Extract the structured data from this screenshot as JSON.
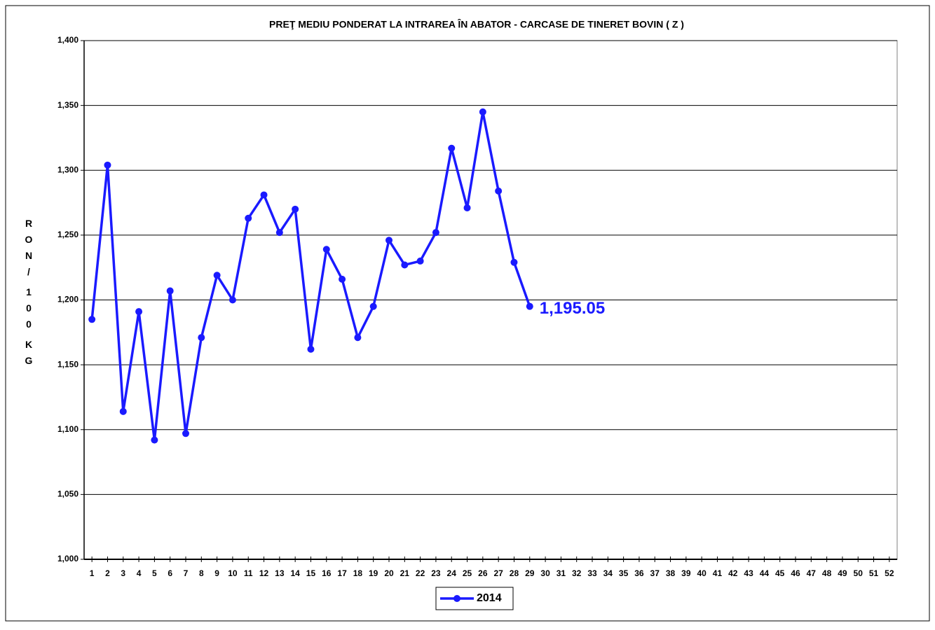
{
  "chart_data": {
    "type": "line",
    "title": "PREŢ MEDIU PONDERAT LA INTRAREA ÎN ABATOR - CARCASE DE TINERET BOVIN ( Z )",
    "y_label": "RON/ 100 KG",
    "x": [
      1,
      2,
      3,
      4,
      5,
      6,
      7,
      8,
      9,
      10,
      11,
      12,
      13,
      14,
      15,
      16,
      17,
      18,
      19,
      20,
      21,
      22,
      23,
      24,
      25,
      26,
      27,
      28,
      29,
      30,
      31,
      32,
      33,
      34,
      35,
      36,
      37,
      38,
      39,
      40,
      41,
      42,
      43,
      44,
      45,
      46,
      47,
      48,
      49,
      50,
      51,
      52
    ],
    "xlim": [
      0.5,
      52.5
    ],
    "ylim": [
      1000,
      1400
    ],
    "yticks": [
      {
        "value": 1000,
        "label": "1,000"
      },
      {
        "value": 1050,
        "label": "1,050"
      },
      {
        "value": 1100,
        "label": "1,100"
      },
      {
        "value": 1150,
        "label": "1,150"
      },
      {
        "value": 1200,
        "label": "1,200"
      },
      {
        "value": 1250,
        "label": "1,250"
      },
      {
        "value": 1300,
        "label": "1,300"
      },
      {
        "value": 1350,
        "label": "1,350"
      },
      {
        "value": 1400,
        "label": "1,400"
      }
    ],
    "grid": true,
    "legend": "bottom",
    "series": [
      {
        "name": "2014",
        "color": "#1a1aff",
        "values": [
          1185,
          1304,
          1114,
          1191,
          1092,
          1207,
          1097,
          1171,
          1219,
          1200,
          1263,
          1281,
          1252,
          1270,
          1162,
          1239,
          1216,
          1171,
          1195,
          1246,
          1227,
          1230,
          1252,
          1317,
          1271,
          1345,
          1284,
          1229,
          1195.05,
          null,
          null,
          null,
          null,
          null,
          null,
          null,
          null,
          null,
          null,
          null,
          null,
          null,
          null,
          null,
          null,
          null,
          null,
          null,
          null,
          null,
          null,
          null
        ],
        "value_labels": [
          null,
          null,
          null,
          null,
          null,
          null,
          null,
          null,
          null,
          null,
          null,
          null,
          null,
          null,
          null,
          null,
          null,
          null,
          null,
          null,
          null,
          null,
          null,
          null,
          null,
          null,
          null,
          null,
          "1,195.05",
          null,
          null,
          null,
          null,
          null,
          null,
          null,
          null,
          null,
          null,
          null,
          null,
          null,
          null,
          null,
          null,
          null,
          null,
          null,
          null,
          null,
          null,
          null
        ]
      }
    ]
  }
}
